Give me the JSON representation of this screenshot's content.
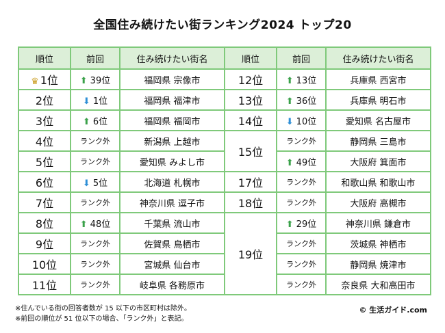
{
  "title": "全国住み続けたい街ランキング2024 トップ20",
  "headers": {
    "rank": "順位",
    "prev": "前回",
    "city": "住み続けたい街名"
  },
  "left": [
    {
      "rank": "1位",
      "crown": true,
      "trend": "up",
      "prev": "39位",
      "city": "福岡県 宗像市"
    },
    {
      "rank": "2位",
      "trend": "down",
      "prev": "1位",
      "city": "福岡県 福津市"
    },
    {
      "rank": "3位",
      "trend": "up",
      "prev": "6位",
      "city": "福岡県 福岡市"
    },
    {
      "rank": "4位",
      "trend": "none",
      "prev": "ランク外",
      "city": "新潟県 上越市"
    },
    {
      "rank": "5位",
      "trend": "none",
      "prev": "ランク外",
      "city": "愛知県 みよし市"
    },
    {
      "rank": "6位",
      "trend": "down",
      "prev": "5位",
      "city": "北海道 札幌市"
    },
    {
      "rank": "7位",
      "trend": "none",
      "prev": "ランク外",
      "city": "神奈川県 逗子市"
    },
    {
      "rank": "8位",
      "trend": "up",
      "prev": "48位",
      "city": "千葉県 流山市"
    },
    {
      "rank": "9位",
      "trend": "none",
      "prev": "ランク外",
      "city": "佐賀県 鳥栖市"
    },
    {
      "rank": "10位",
      "trend": "none",
      "prev": "ランク外",
      "city": "宮城県 仙台市"
    },
    {
      "rank": "11位",
      "trend": "none",
      "prev": "ランク外",
      "city": "岐阜県 各務原市"
    }
  ],
  "right": [
    {
      "rank": "12位",
      "trend": "up",
      "prev": "13位",
      "city": "兵庫県 西宮市"
    },
    {
      "rank": "13位",
      "trend": "up",
      "prev": "36位",
      "city": "兵庫県 明石市"
    },
    {
      "rank": "14位",
      "trend": "down",
      "prev": "10位",
      "city": "愛知県 名古屋市"
    },
    {
      "rank": "15位",
      "trend": "none",
      "prev": "ランク外",
      "city": "静岡県 三島市"
    },
    {
      "rank": "",
      "trend": "up",
      "prev": "49位",
      "city": "大阪府 箕面市"
    },
    {
      "rank": "17位",
      "trend": "none",
      "prev": "ランク外",
      "city": "和歌山県 和歌山市"
    },
    {
      "rank": "18位",
      "trend": "none",
      "prev": "ランク外",
      "city": "大阪府 高槻市"
    },
    {
      "rank": "19位",
      "trend": "up",
      "prev": "29位",
      "city": "神奈川県 鎌倉市"
    },
    {
      "rank": "",
      "trend": "none",
      "prev": "ランク外",
      "city": "茨城県 神栖市"
    },
    {
      "rank": "",
      "trend": "none",
      "prev": "ランク外",
      "city": "静岡県 焼津市"
    },
    {
      "rank": "",
      "trend": "none",
      "prev": "ランク外",
      "city": "奈良県 大和高田市"
    }
  ],
  "notes": [
    "※住んでいる街の回答者数が 15 以下の市区町村は除外。",
    "※前回の順位が 51 位以下の場合、「ランク外」と表記。"
  ],
  "credit": "© 生活ガイド.com",
  "colors": {
    "border": "#7fc97a",
    "header_bg": "#dcefd8",
    "up_arrow": "#3aa14a",
    "down_arrow": "#2f8fd6",
    "crown": "#c99a18"
  }
}
